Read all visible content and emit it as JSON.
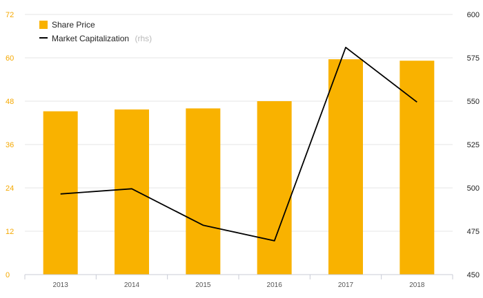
{
  "chart_data": {
    "type": "bar",
    "categories": [
      "2013",
      "2014",
      "2015",
      "2016",
      "2017",
      "2018"
    ],
    "series": [
      {
        "name": "Share Price",
        "type": "bar",
        "axis": "left",
        "color": "#f9b200",
        "values": [
          45.2,
          45.7,
          46.0,
          48.0,
          59.6,
          59.2
        ]
      },
      {
        "name": "Market Capitalization",
        "name_suffix": "(rhs)",
        "type": "line",
        "axis": "right",
        "color": "#000000",
        "values": [
          496.5,
          499.5,
          478.5,
          469.5,
          581.0,
          549.5
        ]
      }
    ],
    "y_left": {
      "ticks": [
        "0",
        "12",
        "24",
        "36",
        "48",
        "60",
        "72"
      ],
      "ylim": [
        0,
        72
      ]
    },
    "y_right": {
      "ticks": [
        "450",
        "475",
        "500",
        "525",
        "550",
        "575",
        "600"
      ],
      "ylim": [
        450,
        600
      ]
    },
    "grid": true,
    "legend_position": "top-left"
  }
}
